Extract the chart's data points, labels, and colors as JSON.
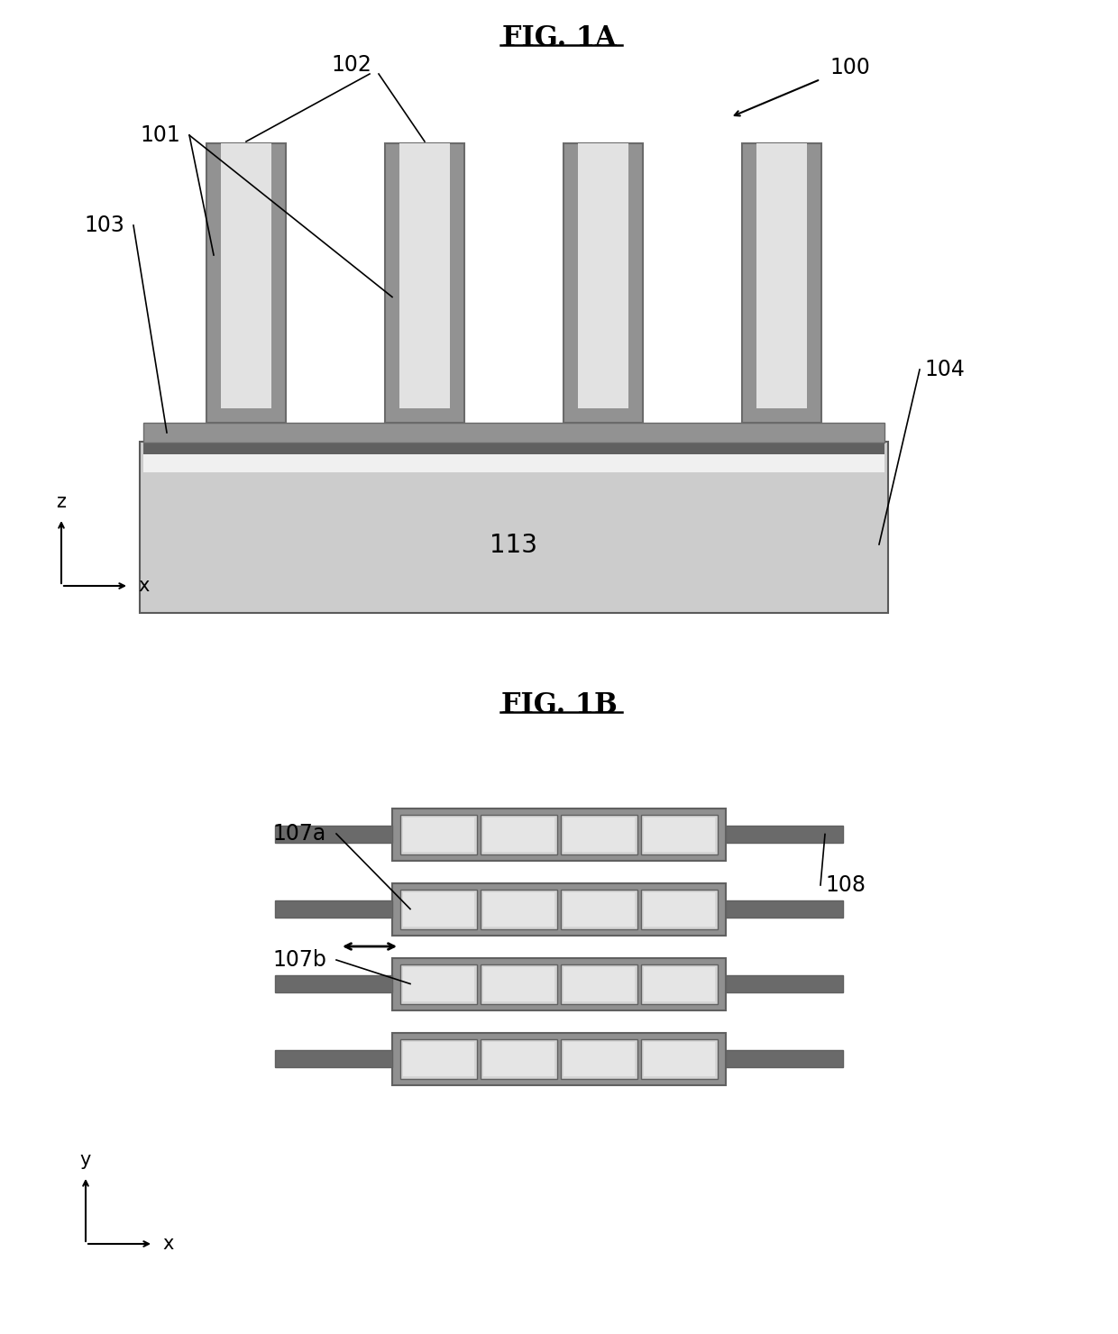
{
  "fig_title_1a": "FIG. 1A",
  "fig_title_1b": "FIG. 1B",
  "bg_color": "#ffffff",
  "label_100": "100",
  "label_101": "101",
  "label_102": "102",
  "label_103": "103",
  "label_104": "104",
  "label_113": "113",
  "label_107a": "107a",
  "label_107b": "107b",
  "label_108": "108",
  "dark_gray": "#5a5a5a",
  "mid_gray": "#999999",
  "light_gray": "#c8c8c8",
  "very_light_gray": "#d8d8d8",
  "substrate_light": "#cccccc",
  "substrate_dark": "#aaaaaa",
  "finger_dark": "#6a6a6a",
  "finger_mid": "#929292",
  "finger_light": "#c0c0c0",
  "finger_white": "#e2e2e2",
  "base_dark": "#606060",
  "thin_film_white": "#f0f0f0",
  "comb_dark": "#606060",
  "comb_mid": "#909090",
  "comb_very_light": "#d5d5d5",
  "bar_color": "#6a6a6a"
}
